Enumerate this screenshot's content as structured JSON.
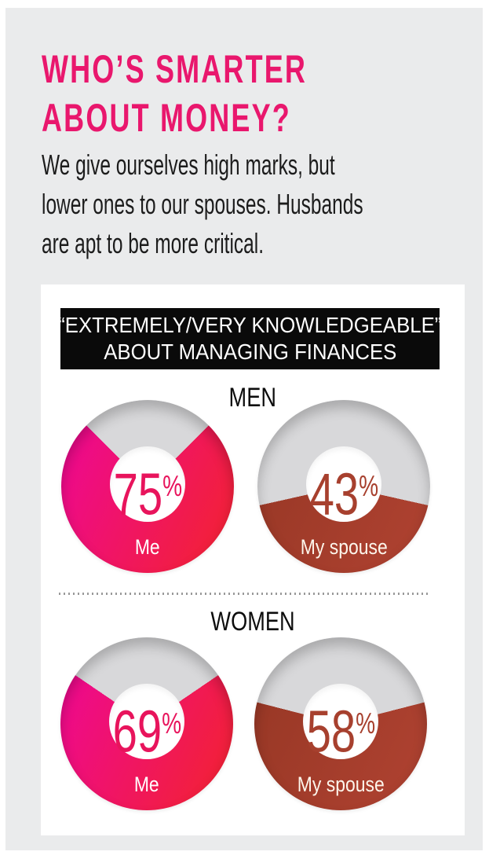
{
  "page": {
    "title_lines": [
      "WHO’S SMARTER",
      "ABOUT MONEY?"
    ],
    "title_color": "#e9176d",
    "subtitle_lines": [
      "We give ourselves high marks, but",
      "lower ones to our spouses. Husbands",
      "are apt to be more critical."
    ]
  },
  "chart_data": {
    "type": "pie",
    "variant": "donut",
    "banner_lines": [
      "“EXTREMELY/VERY KNOWLEDGEABLE”",
      "ABOUT MANAGING FINANCES"
    ],
    "banner_bg": "#0a0a0a",
    "remainder_color": "#d8d8da",
    "value_suffix": "%",
    "groups": [
      {
        "label": "MEN",
        "donuts": [
          {
            "label": "Me",
            "value": 75,
            "unit": "%",
            "wedge_colors": [
              "#ee0a8c",
              "#f2203a"
            ],
            "value_color": "#e8145c",
            "label_color": "#ffffff"
          },
          {
            "label": "My spouse",
            "value": 43,
            "unit": "%",
            "wedge_colors": [
              "#993826",
              "#ad4130"
            ],
            "value_color": "#a7402e",
            "label_color": "#fdf6ec"
          }
        ]
      },
      {
        "label": "WOMEN",
        "donuts": [
          {
            "label": "Me",
            "value": 69,
            "unit": "%",
            "wedge_colors": [
              "#ee0a8c",
              "#f2203a"
            ],
            "value_color": "#e8145c",
            "label_color": "#ffffff"
          },
          {
            "label": "My spouse",
            "value": 58,
            "unit": "%",
            "wedge_colors": [
              "#993826",
              "#ad4130"
            ],
            "value_color": "#a7402e",
            "label_color": "#fdf6ec"
          }
        ]
      }
    ]
  }
}
